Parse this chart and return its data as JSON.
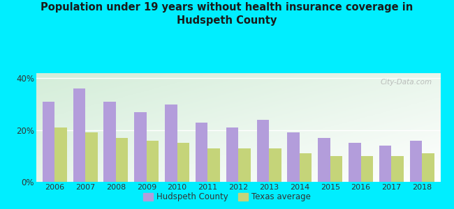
{
  "title": "Population under 19 years without health insurance coverage in\nHudspeth County",
  "years": [
    2006,
    2007,
    2008,
    2009,
    2010,
    2011,
    2012,
    2013,
    2014,
    2015,
    2016,
    2017,
    2018
  ],
  "hudspeth": [
    31,
    36,
    31,
    27,
    30,
    23,
    21,
    24,
    19,
    17,
    15,
    14,
    16
  ],
  "texas": [
    21,
    19,
    17,
    16,
    15,
    13,
    13,
    13,
    11,
    10,
    10,
    10,
    11
  ],
  "hudspeth_color": "#b39ddb",
  "texas_color": "#c5d479",
  "background_outer": "#00eeff",
  "background_inner_topleft": "#d4edda",
  "background_inner_bottomright": "#ffffff",
  "ylim": [
    0,
    42
  ],
  "yticks": [
    0,
    20,
    40
  ],
  "ytick_labels": [
    "0%",
    "20%",
    "40%"
  ],
  "legend_hudspeth": "Hudspeth County",
  "legend_texas": "Texas average",
  "bar_width": 0.4,
  "watermark": "City-Data.com"
}
